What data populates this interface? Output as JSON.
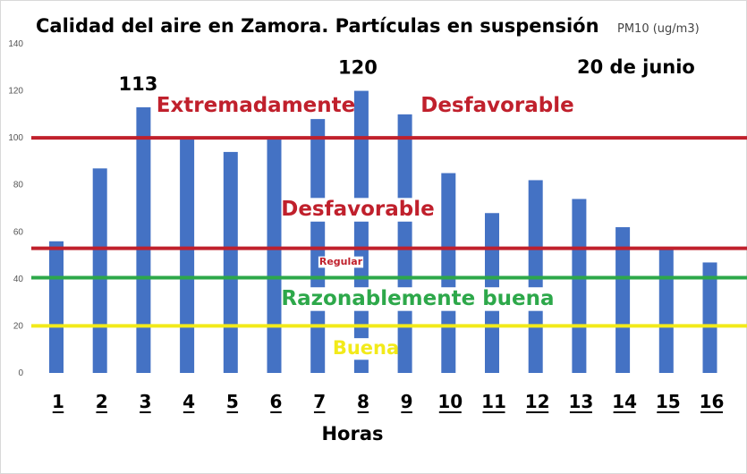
{
  "chart_data": {
    "type": "bar",
    "title": "Calidad del aire en Zamora. Partículas en suspensión",
    "unit": "PM10 (ug/m3)",
    "date": "20 de junio",
    "xlabel": "Horas",
    "ylabel": "",
    "ylim": [
      0,
      140
    ],
    "yticks": [
      0,
      20,
      40,
      60,
      80,
      100,
      120,
      140
    ],
    "categories": [
      "1",
      "2",
      "3",
      "4",
      "5",
      "6",
      "7",
      "8",
      "9",
      "10",
      "11",
      "12",
      "13",
      "14",
      "15",
      "16"
    ],
    "values": [
      56,
      87,
      113,
      100,
      94,
      100,
      108,
      120,
      110,
      85,
      68,
      82,
      74,
      62,
      53,
      47
    ],
    "bar_color": "#4472c4",
    "data_labels": [
      {
        "index": 2,
        "text": "113"
      },
      {
        "index": 7,
        "text": "120"
      }
    ],
    "threshold_lines": [
      {
        "name": "extremadamente-desfavorable",
        "value": 100,
        "color": "#c0202c"
      },
      {
        "name": "desfavorable",
        "value": 53,
        "color": "#c0202c"
      },
      {
        "name": "regular",
        "value": 40.5,
        "color": "#2da84a"
      },
      {
        "name": "buena",
        "value": 20,
        "color": "#f2ea1a"
      }
    ],
    "zone_labels": [
      {
        "text": "Extremadamente",
        "y": 111,
        "color": "#c0202c"
      },
      {
        "text": "Desfavorable",
        "y": 111,
        "color": "#c0202c"
      },
      {
        "text": "Desfavorable",
        "y": 67,
        "color": "#c0202c"
      },
      {
        "text": "Regular",
        "y": 46,
        "color": "#c0202c"
      },
      {
        "text": "Razonablemente buena",
        "y": 29,
        "color": "#2da84a"
      },
      {
        "text": "Buena",
        "y": 8,
        "color": "#f2ea1a"
      }
    ],
    "grid": false,
    "legend": "none"
  }
}
